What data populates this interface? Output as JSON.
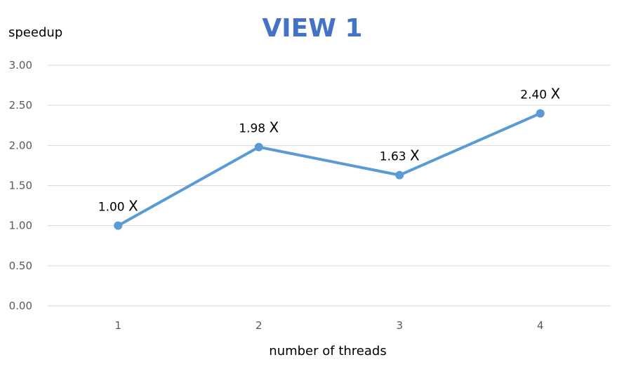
{
  "chart_data": {
    "type": "line",
    "title": "VIEW 1",
    "xlabel": "number of threads",
    "ylabel": "speedup",
    "categories": [
      "1",
      "2",
      "3",
      "4"
    ],
    "series": [
      {
        "values": [
          1.0,
          1.98,
          1.63,
          2.4
        ],
        "data_labels": [
          "1.00",
          "1.98",
          "1.63",
          "2.40"
        ],
        "data_label_suffix": "X",
        "color": "#5b9bd5"
      }
    ],
    "yticks": [
      "0.00",
      "0.50",
      "1.00",
      "1.50",
      "2.00",
      "2.50",
      "3.00"
    ],
    "ylim": [
      0,
      3
    ],
    "grid": true,
    "legend": "none"
  },
  "colors": {
    "line": "#5b9bd5",
    "grid": "#d9d9d9",
    "title": "#4472c4"
  }
}
